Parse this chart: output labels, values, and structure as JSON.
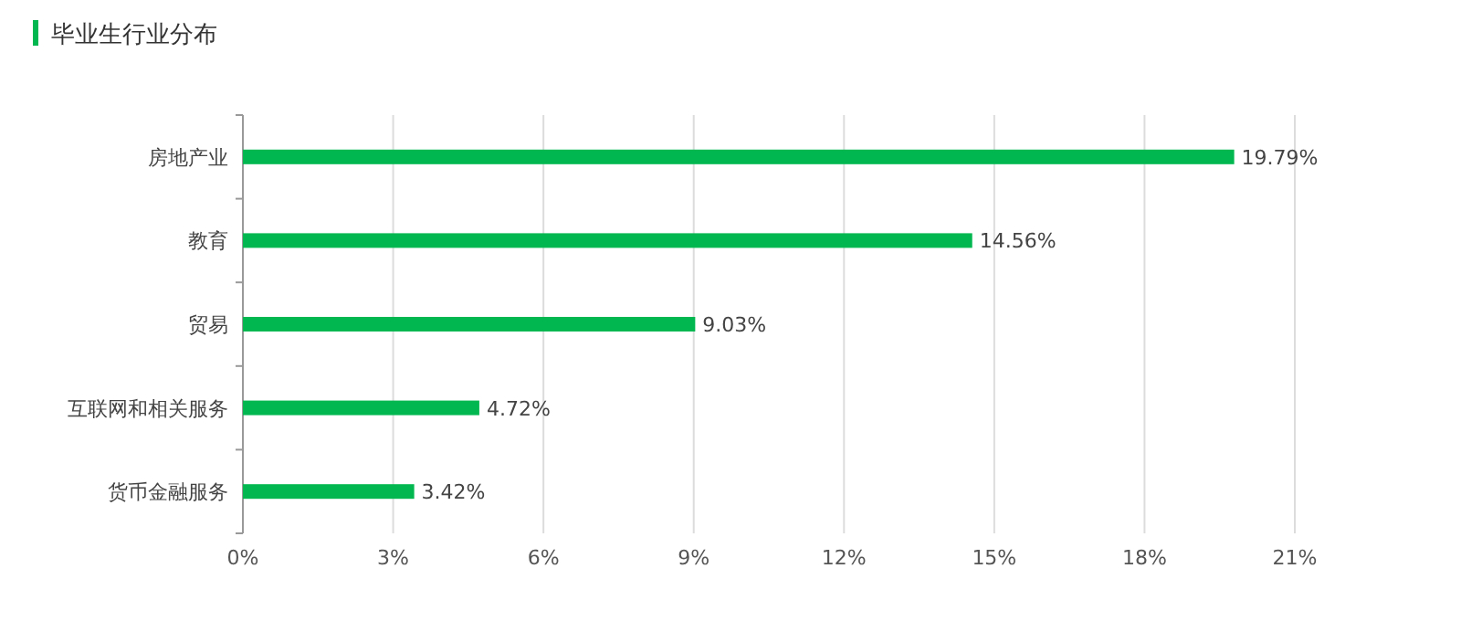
{
  "chart_data": {
    "type": "bar",
    "orientation": "horizontal",
    "title": "毕业生行业分布",
    "categories": [
      "房地产业",
      "教育",
      "贸易",
      "互联网和相关服务",
      "货币金融服务"
    ],
    "values": [
      19.79,
      14.56,
      9.03,
      4.72,
      3.42
    ],
    "value_labels": [
      "19.79%",
      "14.56%",
      "9.03%",
      "4.72%",
      "3.42%"
    ],
    "color": "#00b84f",
    "xlim": [
      0,
      21
    ],
    "xticks": [
      {
        "value": 0,
        "label": "0%"
      },
      {
        "value": 3,
        "label": "3%"
      },
      {
        "value": 6,
        "label": "6%"
      },
      {
        "value": 9,
        "label": "9%"
      },
      {
        "value": 12,
        "label": "12%"
      },
      {
        "value": 15,
        "label": "15%"
      },
      {
        "value": 18,
        "label": "18%"
      },
      {
        "value": 21,
        "label": "21%"
      }
    ],
    "grid": "x"
  }
}
